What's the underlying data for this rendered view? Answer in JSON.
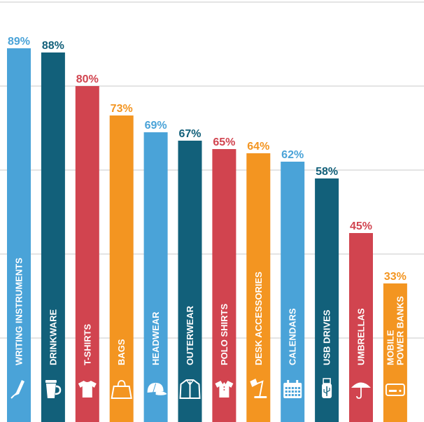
{
  "chart_data": {
    "type": "bar",
    "orientation": "vertical",
    "categories": [
      "WRITING INSTRUMENTS",
      "DRINKWARE",
      "T-SHIRTS",
      "BAGS",
      "HEADWEAR",
      "OUTERWEAR",
      "POLO SHIRTS",
      "DESK ACCESSORIES",
      "CALENDARS",
      "USB DRIVES",
      "UMBRELLAS",
      "MOBILE POWER BANKS"
    ],
    "category_lines": [
      [
        "WRITING INSTRUMENTS"
      ],
      [
        "DRINKWARE"
      ],
      [
        "T-SHIRTS"
      ],
      [
        "BAGS"
      ],
      [
        "HEADWEAR"
      ],
      [
        "OUTERWEAR"
      ],
      [
        "POLO SHIRTS"
      ],
      [
        "DESK ACCESSORIES"
      ],
      [
        "CALENDARS"
      ],
      [
        "USB DRIVES"
      ],
      [
        "UMBRELLAS"
      ],
      [
        "MOBILE",
        "POWER BANKS"
      ]
    ],
    "values": [
      89,
      88,
      80,
      73,
      69,
      67,
      65,
      64,
      62,
      58,
      45,
      33
    ],
    "value_labels": [
      "89%",
      "88%",
      "80%",
      "73%",
      "69%",
      "67%",
      "65%",
      "64%",
      "62%",
      "58%",
      "45%",
      "33%"
    ],
    "icons": [
      "pen-icon",
      "travel-mug-icon",
      "t-shirt-icon",
      "shopping-bag-icon",
      "cap-icon",
      "jacket-icon",
      "polo-shirt-icon",
      "desk-lamp-icon",
      "calendar-icon",
      "usb-drive-icon",
      "umbrella-icon",
      "power-bank-icon"
    ],
    "colors": [
      "#4aa3d8",
      "#12607a",
      "#d1444f",
      "#f39521",
      "#4aa3d8",
      "#12607a",
      "#d1444f",
      "#f39521",
      "#4aa3d8",
      "#12607a",
      "#d1444f",
      "#f39521"
    ],
    "ylim": [
      0,
      100
    ],
    "grid": true,
    "legend": "none"
  }
}
